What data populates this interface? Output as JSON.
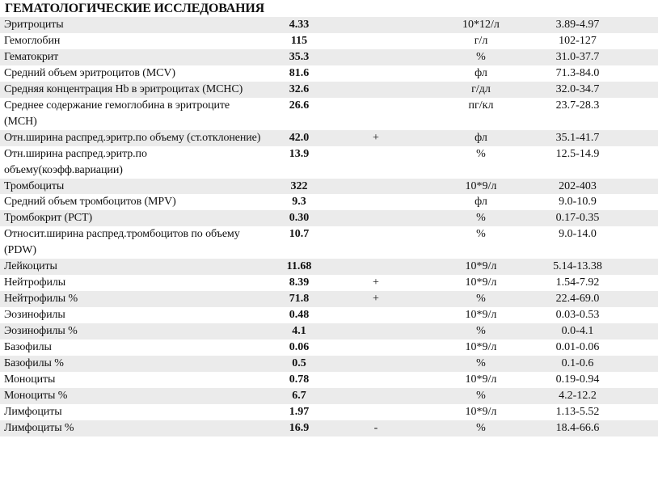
{
  "title": "ГЕМАТОЛОГИЧЕСКИЕ ИССЛЕДОВАНИЯ",
  "rows": [
    {
      "name": "Эритроциты",
      "value": "4.33",
      "flag": "",
      "unit": "10*12/л",
      "range": "3.89-4.97"
    },
    {
      "name": "Гемоглобин",
      "value": "115",
      "flag": "",
      "unit": "г/л",
      "range": "102-127"
    },
    {
      "name": "Гематокрит",
      "value": "35.3",
      "flag": "",
      "unit": "%",
      "range": "31.0-37.7"
    },
    {
      "name": "Средний объем эритроцитов (MCV)",
      "value": "81.6",
      "flag": "",
      "unit": "фл",
      "range": "71.3-84.0"
    },
    {
      "name": "Средняя концентрация Hb в эритроцитах (MCHC)",
      "value": "32.6",
      "flag": "",
      "unit": "г/дл",
      "range": "32.0-34.7"
    },
    {
      "name": "Среднее содержание гемоглобина в эритроците (MCH)",
      "value": "26.6",
      "flag": "",
      "unit": "пг/кл",
      "range": "23.7-28.3"
    },
    {
      "name": "Отн.ширина распред.эритр.по объему (ст.отклонение)",
      "value": "42.0",
      "flag": "+",
      "unit": "фл",
      "range": "35.1-41.7"
    },
    {
      "name": "Отн.ширина распред.эритр.по объему(коэфф.вариации)",
      "value": "13.9",
      "flag": "",
      "unit": "%",
      "range": "12.5-14.9"
    },
    {
      "name": "Тромбоциты",
      "value": "322",
      "flag": "",
      "unit": "10*9/л",
      "range": "202-403"
    },
    {
      "name": "Средний объем тромбоцитов (MPV)",
      "value": "9.3",
      "flag": "",
      "unit": "фл",
      "range": "9.0-10.9"
    },
    {
      "name": "Тромбокрит (PCT)",
      "value": "0.30",
      "flag": "",
      "unit": "%",
      "range": "0.17-0.35"
    },
    {
      "name": "Относит.ширина распред.тромбоцитов по объему (PDW)",
      "value": "10.7",
      "flag": "",
      "unit": "%",
      "range": "9.0-14.0"
    },
    {
      "name": "Лейкоциты",
      "value": "11.68",
      "flag": "",
      "unit": "10*9/л",
      "range": "5.14-13.38"
    },
    {
      "name": "Нейтрофилы",
      "value": "8.39",
      "flag": "+",
      "unit": "10*9/л",
      "range": "1.54-7.92"
    },
    {
      "name": "Нейтрофилы %",
      "value": "71.8",
      "flag": "+",
      "unit": "%",
      "range": "22.4-69.0"
    },
    {
      "name": "Эозинофилы",
      "value": "0.48",
      "flag": "",
      "unit": "10*9/л",
      "range": "0.03-0.53"
    },
    {
      "name": "Эозинофилы %",
      "value": "4.1",
      "flag": "",
      "unit": "%",
      "range": "0.0-4.1"
    },
    {
      "name": "Базофилы",
      "value": "0.06",
      "flag": "",
      "unit": "10*9/л",
      "range": "0.01-0.06"
    },
    {
      "name": "Базофилы %",
      "value": "0.5",
      "flag": "",
      "unit": "%",
      "range": "0.1-0.6"
    },
    {
      "name": "Моноциты",
      "value": "0.78",
      "flag": "",
      "unit": "10*9/л",
      "range": "0.19-0.94"
    },
    {
      "name": "Моноциты %",
      "value": "6.7",
      "flag": "",
      "unit": "%",
      "range": "4.2-12.2"
    },
    {
      "name": "Лимфоциты",
      "value": "1.97",
      "flag": "",
      "unit": "10*9/л",
      "range": "1.13-5.52"
    },
    {
      "name": "Лимфоциты %",
      "value": "16.9",
      "flag": "-",
      "unit": "%",
      "range": "18.4-66.6"
    }
  ]
}
